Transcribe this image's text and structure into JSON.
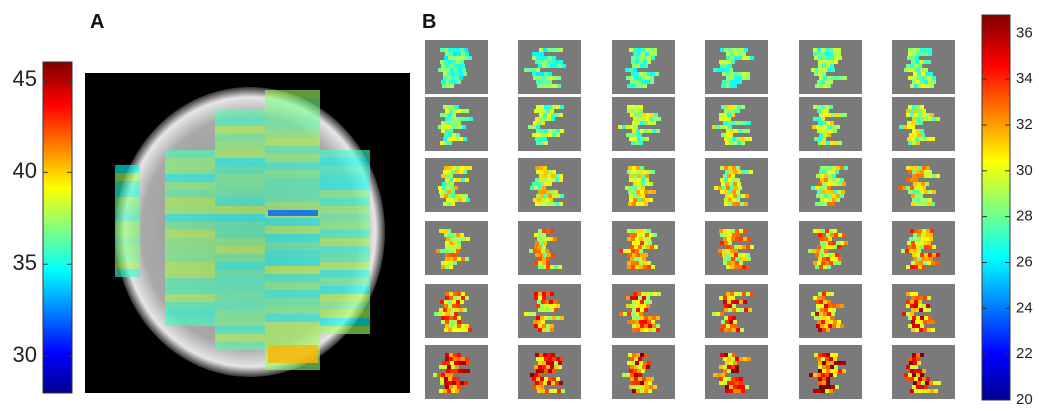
{
  "panels": [
    {
      "label": "A",
      "colorbar": {
        "lim": [
          28,
          46
        ],
        "ticks": [
          30,
          35,
          40,
          45
        ]
      }
    },
    {
      "label": "B",
      "colorbar": {
        "lim": [
          20,
          36.8
        ],
        "ticks": [
          20,
          22,
          24,
          26,
          28,
          30,
          32,
          34,
          36
        ]
      }
    }
  ]
}
